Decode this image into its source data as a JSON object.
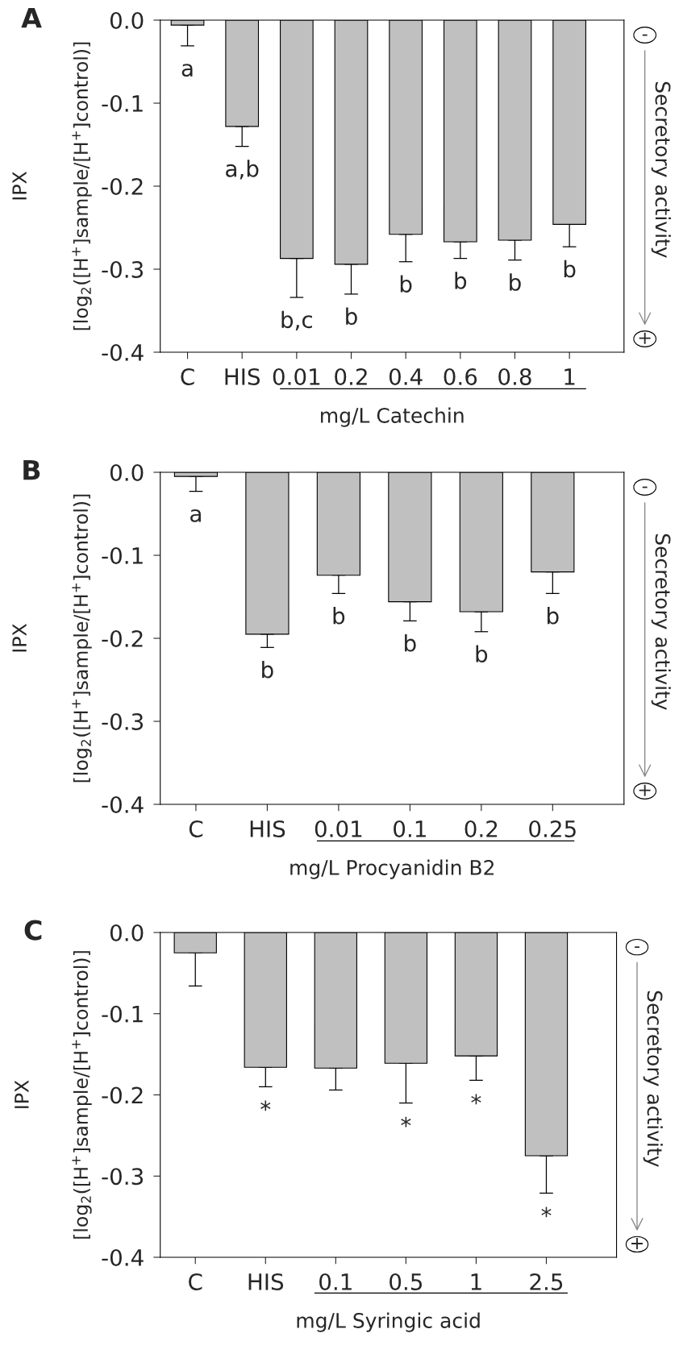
{
  "chart_data": [
    {
      "type": "bar",
      "title": "A",
      "xlabel": "mg/L Catechin",
      "ylabel": "[log$_{2}$([H$^{+}$]sample/[H$^{+}$]control)]",
      "categories": [
        "C",
        "HIS",
        "0.01",
        "0.2",
        "0.4",
        "0.6",
        "0.8",
        "1"
      ],
      "series": [
        {
          "color": "#c0c0c0",
          "values": [
            -0.006,
            -0.128,
            -0.287,
            -0.294,
            -0.258,
            -0.267,
            -0.265,
            -0.246
          ],
          "errors": [
            [
              -0.031,
              -0.006
            ],
            [
              -0.152,
              -0.128
            ],
            [
              -0.334,
              -0.287
            ],
            [
              -0.33,
              -0.294
            ],
            [
              -0.291,
              -0.258
            ],
            [
              -0.287,
              -0.267
            ],
            [
              -0.289,
              -0.265
            ],
            [
              -0.273,
              -0.246
            ]
          ],
          "value_labels": [
            "a",
            "a,b",
            "b,c",
            "b",
            "b",
            "b",
            "b",
            "b"
          ]
        }
      ],
      "ylim": [
        -0.4,
        0.0
      ],
      "yticks": [
        {
          "value": -0.4,
          "label": "-0.4"
        },
        {
          "value": -0.3,
          "label": "-0.3"
        },
        {
          "value": -0.2,
          "label": "-0.2"
        },
        {
          "value": -0.1,
          "label": "-0.1"
        },
        {
          "value": 0.0,
          "label": "0.0"
        }
      ],
      "grid": false,
      "legend": false,
      "annotations": [
        "IPX",
        "-",
        "+",
        "Secretory activity"
      ]
    },
    {
      "type": "bar",
      "title": "B",
      "xlabel": "mg/L Procyanidin B2",
      "ylabel": "[log$_{2}$([H$^{+}$]sample/[H$^{+}$]control)]",
      "categories": [
        "C",
        "HIS",
        "0.01",
        "0.1",
        "0.2",
        "0.25"
      ],
      "series": [
        {
          "color": "#c0c0c0",
          "values": [
            -0.005,
            -0.195,
            -0.124,
            -0.156,
            -0.168,
            -0.12
          ],
          "errors": [
            [
              -0.023,
              -0.005
            ],
            [
              -0.211,
              -0.195
            ],
            [
              -0.146,
              -0.124
            ],
            [
              -0.179,
              -0.156
            ],
            [
              -0.192,
              -0.168
            ],
            [
              -0.146,
              -0.12
            ]
          ],
          "value_labels": [
            "a",
            "b",
            "b",
            "b",
            "b",
            "b"
          ]
        }
      ],
      "ylim": [
        -0.4,
        0.0
      ],
      "yticks": [
        {
          "value": -0.4,
          "label": "-0.4"
        },
        {
          "value": -0.3,
          "label": "-0.3"
        },
        {
          "value": -0.2,
          "label": "-0.2"
        },
        {
          "value": -0.1,
          "label": "-0.1"
        },
        {
          "value": 0.0,
          "label": "0.0"
        }
      ],
      "grid": false,
      "legend": false,
      "annotations": [
        "IPX",
        "-",
        "+",
        "Secretory activity"
      ]
    },
    {
      "type": "bar",
      "title": "C",
      "xlabel": "mg/L Syringic acid",
      "ylabel": "[log$_{2}$([H$^{+}$]sample/[H$^{+}$]control)]",
      "categories": [
        "C",
        "HIS",
        "0.1",
        "0.5",
        "1",
        "2.5"
      ],
      "series": [
        {
          "color": "#c0c0c0",
          "values": [
            -0.025,
            -0.166,
            -0.167,
            -0.161,
            -0.152,
            -0.275
          ],
          "errors": [
            [
              -0.066,
              -0.025
            ],
            [
              -0.19,
              -0.166
            ],
            [
              -0.194,
              -0.167
            ],
            [
              -0.21,
              -0.161
            ],
            [
              -0.182,
              -0.152
            ],
            [
              -0.321,
              -0.275
            ]
          ],
          "value_labels": [
            null,
            "*",
            null,
            "*",
            "*",
            "*"
          ]
        }
      ],
      "ylim": [
        -0.4,
        0.0
      ],
      "yticks": [
        {
          "value": -0.4,
          "label": "-0.4"
        },
        {
          "value": -0.3,
          "label": "-0.3"
        },
        {
          "value": -0.2,
          "label": "-0.2"
        },
        {
          "value": -0.1,
          "label": "-0.1"
        },
        {
          "value": 0.0,
          "label": "0.0"
        }
      ],
      "grid": false,
      "legend": false,
      "annotations": [
        "IPX",
        "-",
        "+",
        "Secretory activity"
      ]
    }
  ]
}
